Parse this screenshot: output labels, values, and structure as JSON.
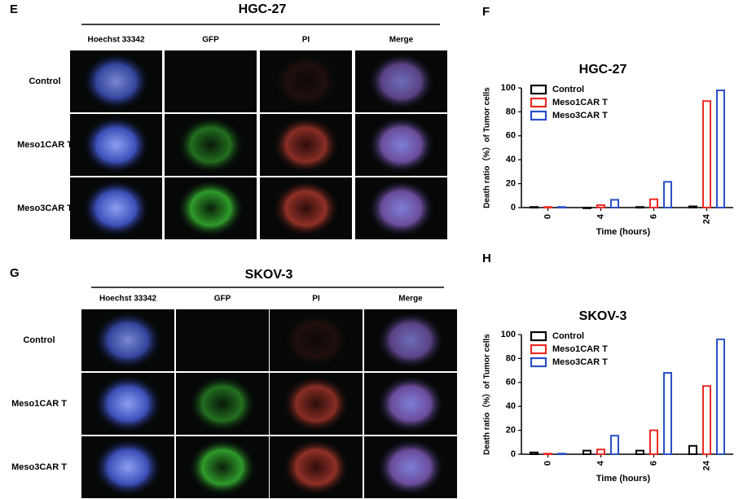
{
  "panels": [
    {
      "letter": "E",
      "title": "HGC-27",
      "columns": [
        "Hoechst 33342",
        "GFP",
        "PI",
        "Merge"
      ],
      "rows": [
        "Control",
        "Meso1CAR T",
        "Meso3CAR T"
      ]
    },
    {
      "letter": "G",
      "title": "SKOV-3",
      "columns": [
        "Hoechst 33342",
        "GFP",
        "PI",
        "Merge"
      ],
      "rows": [
        "Control",
        "Meso1CAR T",
        "Meso3CAR T"
      ]
    }
  ],
  "chart_data": [
    {
      "type": "bar",
      "letter": "F",
      "title": "HGC-27",
      "categories": [
        "0",
        "4",
        "6",
        "24"
      ],
      "series": [
        {
          "name": "Control",
          "color": "#000000",
          "values": [
            0.5,
            0,
            0.5,
            1
          ]
        },
        {
          "name": "Meso1CAR T",
          "color": "#ee2a24",
          "values": [
            0.5,
            2,
            7,
            89
          ]
        },
        {
          "name": "Meso3CAR T",
          "color": "#2b4fc7",
          "values": [
            0.5,
            6.5,
            21.5,
            98
          ]
        }
      ],
      "ylim": [
        0,
        100
      ],
      "yticks": [
        0,
        20,
        40,
        60,
        80,
        100
      ],
      "xlabel": "Time (hours)",
      "ylabel": "Death ratio（%）of Tumor cells",
      "legend": "upper left"
    },
    {
      "type": "bar",
      "letter": "H",
      "title": "SKOV-3",
      "categories": [
        "0",
        "4",
        "6",
        "24"
      ],
      "series": [
        {
          "name": "Control",
          "color": "#000000",
          "values": [
            1.5,
            3,
            3,
            7
          ]
        },
        {
          "name": "Meso1CAR T",
          "color": "#ee2a24",
          "values": [
            0.5,
            4,
            20,
            57
          ]
        },
        {
          "name": "Meso3CAR T",
          "color": "#2b4fc7",
          "values": [
            0.5,
            15.5,
            68,
            96
          ]
        }
      ],
      "ylim": [
        0,
        100
      ],
      "yticks": [
        0,
        20,
        40,
        60,
        80,
        100
      ],
      "xlabel": "Time (hours)",
      "ylabel": "Death ratio（%）of Tumor cells",
      "legend": "upper left"
    }
  ]
}
